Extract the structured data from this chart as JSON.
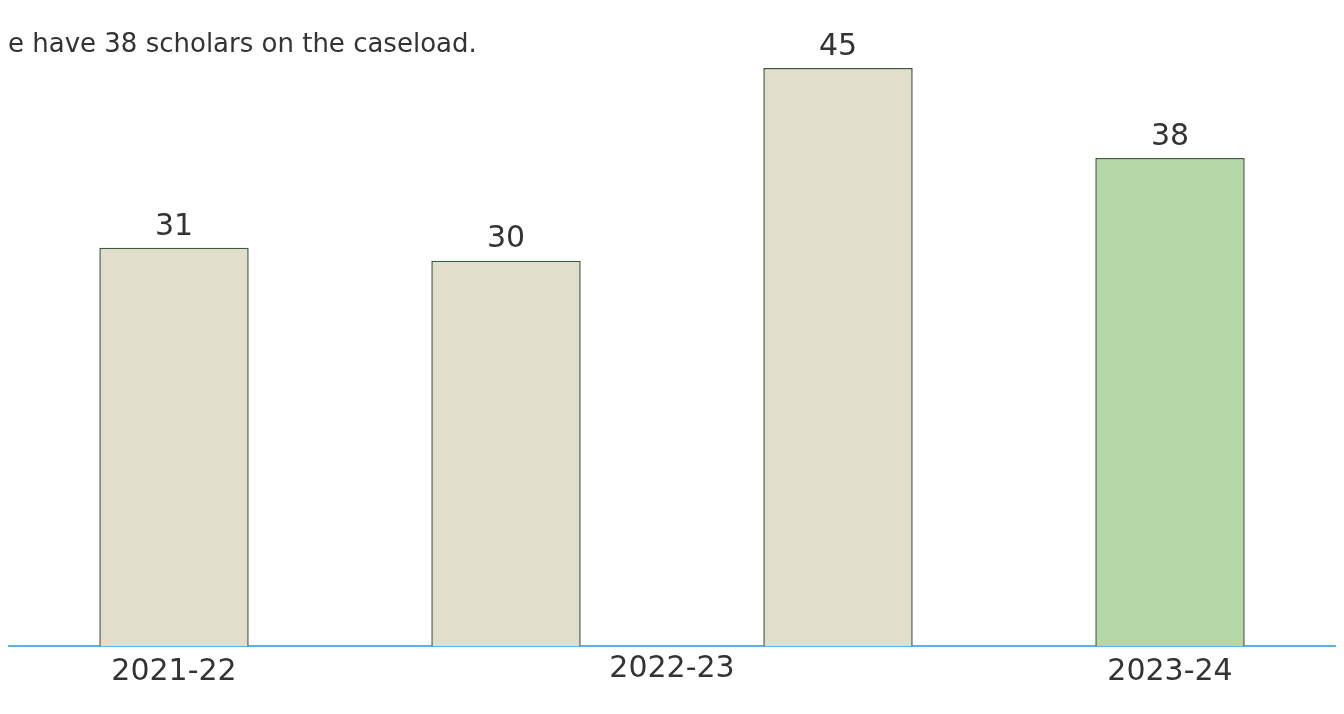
{
  "chart_data": {
    "type": "bar",
    "subtitle": "e have 38 scholars on the caseload.",
    "categories": [
      "2021-22",
      null,
      null,
      "2023-24"
    ],
    "values": [
      31,
      30,
      45,
      38
    ],
    "colors": [
      "#e1dfcb",
      "#e1dfcb",
      "#e1dfcb",
      "#b5d6a7"
    ],
    "data_labels": true,
    "grid": false,
    "legend": false,
    "annotations": [
      "2022-23"
    ]
  }
}
